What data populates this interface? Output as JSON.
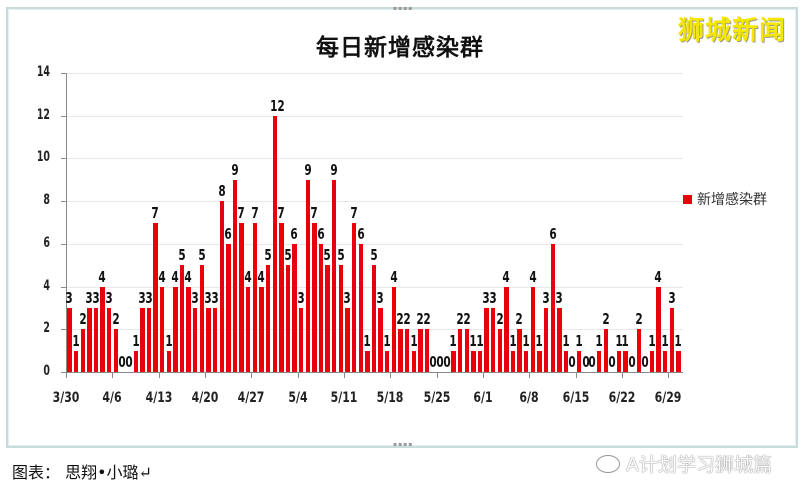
{
  "brand": "狮城新闻",
  "footer": {
    "credit": "图表： 思翔•小璐↵",
    "watermark": "A计划学习狮城篇"
  },
  "chart_data": {
    "type": "bar",
    "title": "每日新增感染群",
    "xlabel": "",
    "ylabel": "",
    "ylim": [
      0,
      14
    ],
    "yticks": [
      0,
      2,
      4,
      6,
      8,
      10,
      12,
      14
    ],
    "grid": true,
    "legend_position": "right",
    "legend": [
      "新增感染群"
    ],
    "bar_color": "#e8000b",
    "xtick_labels": [
      "3/30",
      "4/6",
      "4/13",
      "4/20",
      "4/27",
      "5/4",
      "5/11",
      "5/18",
      "5/25",
      "6/1",
      "6/8",
      "6/15",
      "6/22",
      "6/29"
    ],
    "categories": [
      "3/30",
      "3/31",
      "4/1",
      "4/2",
      "4/3",
      "4/4",
      "4/5",
      "4/6",
      "4/7",
      "4/8",
      "4/9",
      "4/10",
      "4/11",
      "4/12",
      "4/13",
      "4/14",
      "4/15",
      "4/16",
      "4/17",
      "4/18",
      "4/19",
      "4/20",
      "4/21",
      "4/22",
      "4/23",
      "4/24",
      "4/25",
      "4/26",
      "4/27",
      "4/28",
      "4/29",
      "4/30",
      "5/1",
      "5/2",
      "5/3",
      "5/4",
      "5/5",
      "5/6",
      "5/7",
      "5/8",
      "5/9",
      "5/10",
      "5/11",
      "5/12",
      "5/13",
      "5/14",
      "5/15",
      "5/16",
      "5/17",
      "5/18",
      "5/19",
      "5/20",
      "5/21",
      "5/22",
      "5/23",
      "5/24",
      "5/25",
      "5/26",
      "5/27",
      "5/28",
      "5/29",
      "5/30",
      "5/31",
      "6/1",
      "6/2",
      "6/3",
      "6/4",
      "6/5",
      "6/6",
      "6/7",
      "6/8",
      "6/9",
      "6/10",
      "6/11",
      "6/12",
      "6/13",
      "6/14",
      "6/15",
      "6/16",
      "6/17",
      "6/18",
      "6/19",
      "6/20",
      "6/21",
      "6/22",
      "6/23",
      "6/24",
      "6/25",
      "6/26",
      "6/27",
      "6/28",
      "6/29",
      "6/30"
    ],
    "series": [
      {
        "name": "新增感染群",
        "values": [
          3,
          1,
          2,
          3,
          3,
          4,
          3,
          2,
          0,
          0,
          1,
          3,
          3,
          7,
          4,
          1,
          4,
          5,
          4,
          3,
          5,
          3,
          3,
          8,
          6,
          9,
          7,
          4,
          7,
          4,
          5,
          12,
          7,
          5,
          6,
          3,
          9,
          7,
          6,
          5,
          9,
          5,
          3,
          7,
          6,
          1,
          5,
          3,
          1,
          4,
          2,
          2,
          1,
          2,
          2,
          0,
          0,
          0,
          1,
          2,
          2,
          1,
          1,
          3,
          3,
          2,
          4,
          1,
          2,
          1,
          4,
          1,
          3,
          6,
          3,
          1,
          0,
          1,
          0,
          0,
          1,
          2,
          0,
          1,
          1,
          0,
          2,
          0,
          1,
          4,
          1,
          3,
          1
        ]
      }
    ]
  }
}
